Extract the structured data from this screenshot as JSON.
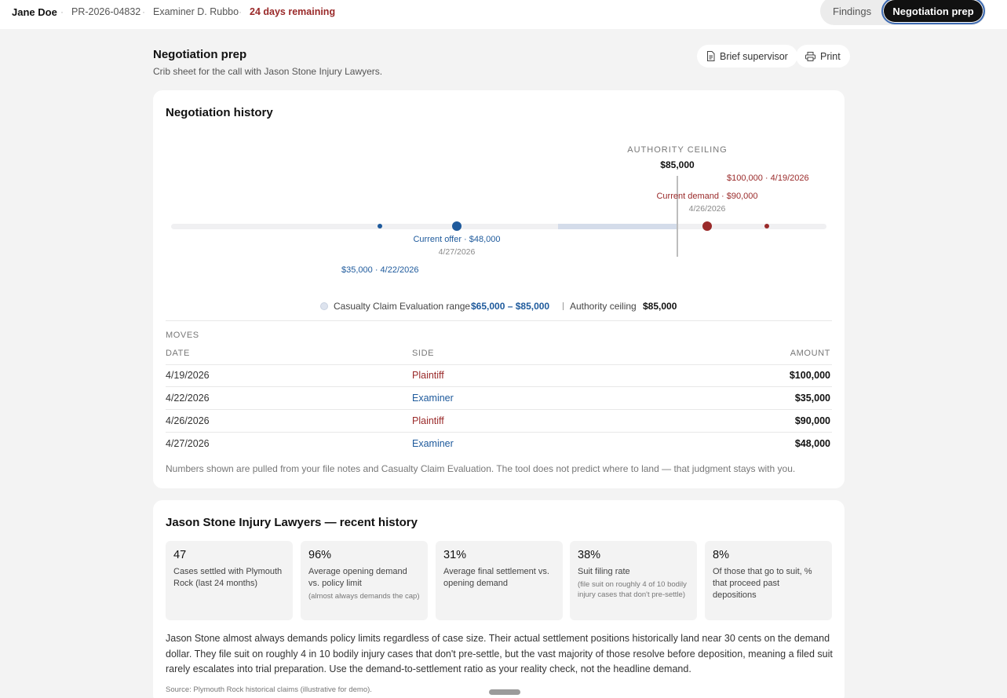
{
  "topbar": {
    "claimant": "Jane Doe",
    "claim_number": "PR-2026-04832",
    "examiner": "Examiner D. Rubbo",
    "remaining": "24 days remaining",
    "separator": "·",
    "tabs": [
      {
        "label": "Findings",
        "active": false
      },
      {
        "label": "Negotiation prep",
        "active": true
      }
    ]
  },
  "page": {
    "title": "Negotiation prep",
    "subtitle": "Crib sheet for the call with Jason Stone Injury Lawyers.",
    "brief_button": "Brief supervisor",
    "print_button": "Print"
  },
  "history": {
    "title": "Negotiation history",
    "authority_label": "AUTHORITY CEILING",
    "authority_value": "$85,000",
    "timeline_range": [
      20000,
      110000
    ],
    "points": [
      {
        "side": "Examiner",
        "amount": 35000,
        "label": "$35,000 · 4/22/2026",
        "date": "",
        "current": false
      },
      {
        "side": "Examiner",
        "amount": 48000,
        "label": "Current offer · $48,000",
        "date": "4/27/2026",
        "current": true
      },
      {
        "side": "Plaintiff",
        "amount": 90000,
        "label": "Current demand · $90,000",
        "date": "4/26/2026",
        "current": true
      },
      {
        "side": "Plaintiff",
        "amount": 100000,
        "label": "$100,000 · 4/19/2026",
        "date": "",
        "current": false
      }
    ],
    "evaluation_range": [
      65000,
      85000
    ],
    "authority_ceiling": 85000,
    "legend": {
      "range_label": "Casualty Claim Evaluation range",
      "range_value": "$65,000 – $85,000",
      "ceiling_label": "Authority ceiling",
      "ceiling_value": "$85,000"
    },
    "moves_label": "MOVES",
    "columns": [
      "DATE",
      "SIDE",
      "AMOUNT"
    ],
    "moves": [
      {
        "date": "4/19/2026",
        "side": "Plaintiff",
        "amount": "$100,000"
      },
      {
        "date": "4/22/2026",
        "side": "Examiner",
        "amount": "$35,000"
      },
      {
        "date": "4/26/2026",
        "side": "Plaintiff",
        "amount": "$90,000"
      },
      {
        "date": "4/27/2026",
        "side": "Examiner",
        "amount": "$48,000"
      }
    ],
    "footnote": "Numbers shown are pulled from your file notes and Casualty Claim Evaluation. The tool does not predict where to land — that judgment stays with you.",
    "colors": {
      "plaintiff": "#9a2a2a",
      "examiner": "#1e5a9c",
      "range": "#d4dcea"
    }
  },
  "firm": {
    "title": "Jason Stone Injury Lawyers — recent history",
    "stats": [
      {
        "value": "47",
        "desc": "Cases settled with Plymouth Rock (last 24 months)",
        "note": ""
      },
      {
        "value": "96%",
        "desc": "Average opening demand vs. policy limit",
        "note": "(almost always demands the cap)"
      },
      {
        "value": "31%",
        "desc": "Average final settlement vs. opening demand",
        "note": ""
      },
      {
        "value": "38%",
        "desc": "Suit filing rate",
        "note": "(file suit on roughly 4 of 10 bodily injury cases that don't pre-settle)"
      },
      {
        "value": "8%",
        "desc": "Of those that go to suit, % that proceed past depositions",
        "note": ""
      }
    ],
    "summary": "Jason Stone almost always demands policy limits regardless of case size. Their actual settlement positions historically land near 30 cents on the demand dollar. They file suit on roughly 4 in 10 bodily injury cases that don't pre-settle, but the vast majority of those resolve before deposition, meaning a filed suit rarely escalates into trial preparation. Use the demand-to-settlement ratio as your reality check, not the headline demand.",
    "source": "Source: Plymouth Rock historical claims (illustrative for demo)."
  }
}
